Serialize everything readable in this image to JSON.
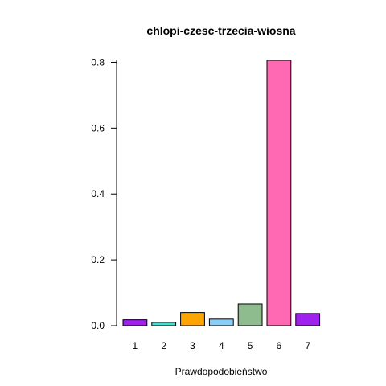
{
  "chart_data": {
    "type": "bar",
    "title": "chlopi-czesc-trzecia-wiosna",
    "xlabel": "Prawdopodobieństwo",
    "ylabel": "",
    "categories": [
      "1",
      "2",
      "3",
      "4",
      "5",
      "6",
      "7"
    ],
    "values": [
      0.018,
      0.01,
      0.04,
      0.02,
      0.066,
      0.806,
      0.037
    ],
    "colors": [
      "#a020f0",
      "#40e0d0",
      "#ffa500",
      "#87cefa",
      "#8fbc8f",
      "#ff69b4",
      "#a020f0"
    ],
    "yticks": [
      0.0,
      0.2,
      0.4,
      0.6,
      0.8
    ],
    "ytick_labels": [
      "0.0",
      "0.2",
      "0.4",
      "0.6",
      "0.8"
    ],
    "ylim": [
      0,
      0.806
    ],
    "grid": false,
    "legend": null
  }
}
